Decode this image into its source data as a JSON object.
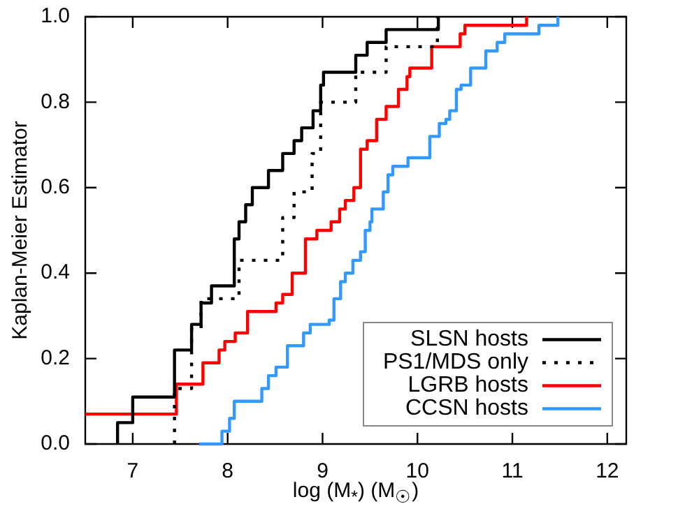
{
  "chart_data": {
    "type": "step",
    "xlabel": "log (M$_{*}$) (M$_{☉}$)",
    "ylabel": "Kaplan-Meier Estimator",
    "xlim": [
      6.5,
      12.2
    ],
    "ylim": [
      0,
      1
    ],
    "xticks": [
      7,
      8,
      9,
      10,
      11,
      12
    ],
    "yticks": [
      {
        "value": 0,
        "label": "0.0"
      },
      0.2,
      0.4,
      0.6,
      0.8,
      {
        "value": 1,
        "label": "1.0"
      }
    ],
    "grid": false,
    "legend": "bottom right",
    "series": [
      {
        "name": "SLSN hosts",
        "color": "#000000",
        "line_style": "solid",
        "x": [
          6.84,
          6.84,
          7.0,
          7.44,
          7.62,
          7.72,
          7.83,
          8.07,
          8.12,
          8.19,
          8.26,
          8.43,
          8.58,
          8.7,
          8.78,
          8.9,
          8.98,
          9.01,
          9.35,
          9.47,
          9.67,
          10.22
        ],
        "values": [
          0,
          0.05,
          0.11,
          0.22,
          0.28,
          0.33,
          0.37,
          0.48,
          0.52,
          0.56,
          0.6,
          0.64,
          0.68,
          0.71,
          0.74,
          0.78,
          0.84,
          0.87,
          0.91,
          0.94,
          0.97,
          1.0
        ]
      },
      {
        "name": "PS1/MDS only",
        "color": "#000000",
        "line_style": "dotted",
        "x": [
          7.44,
          7.44,
          7.62,
          7.72,
          8.12,
          8.58,
          8.7,
          8.89,
          8.98,
          9.35,
          9.67,
          10.21
        ],
        "values": [
          0,
          0.13,
          0.27,
          0.34,
          0.43,
          0.53,
          0.59,
          0.68,
          0.8,
          0.87,
          0.93,
          1.0
        ]
      },
      {
        "name": "LGRB hosts",
        "color": "#ff0000",
        "line_style": "solid",
        "x": [
          6.5,
          7.46,
          7.74,
          7.91,
          7.97,
          8.08,
          8.21,
          8.51,
          8.58,
          8.68,
          8.82,
          8.94,
          9.09,
          9.18,
          9.24,
          9.33,
          9.4,
          9.47,
          9.57,
          9.67,
          9.8,
          9.89,
          9.92,
          10.15,
          10.45,
          10.5,
          11.15
        ],
        "values": [
          0.07,
          0.14,
          0.19,
          0.22,
          0.24,
          0.26,
          0.31,
          0.33,
          0.35,
          0.4,
          0.48,
          0.5,
          0.52,
          0.55,
          0.57,
          0.6,
          0.69,
          0.71,
          0.76,
          0.79,
          0.83,
          0.86,
          0.88,
          0.93,
          0.96,
          0.98,
          1.0
        ]
      },
      {
        "name": "CCSN hosts",
        "color": "#3399ff",
        "line_style": "solid",
        "x": [
          7.7,
          7.94,
          8.02,
          8.07,
          8.36,
          8.43,
          8.51,
          8.63,
          8.8,
          8.87,
          9.07,
          9.12,
          9.19,
          9.24,
          9.32,
          9.4,
          9.45,
          9.5,
          9.52,
          9.64,
          9.69,
          9.74,
          9.9,
          10.13,
          10.23,
          10.3,
          10.34,
          10.41,
          10.46,
          10.56,
          10.72,
          10.84,
          10.92,
          11.28,
          11.48
        ],
        "values": [
          0,
          0.03,
          0.06,
          0.1,
          0.13,
          0.16,
          0.18,
          0.23,
          0.26,
          0.28,
          0.29,
          0.34,
          0.38,
          0.4,
          0.43,
          0.45,
          0.5,
          0.52,
          0.55,
          0.59,
          0.63,
          0.65,
          0.67,
          0.72,
          0.75,
          0.76,
          0.78,
          0.83,
          0.84,
          0.88,
          0.92,
          0.94,
          0.96,
          0.98,
          1.0
        ]
      }
    ]
  }
}
